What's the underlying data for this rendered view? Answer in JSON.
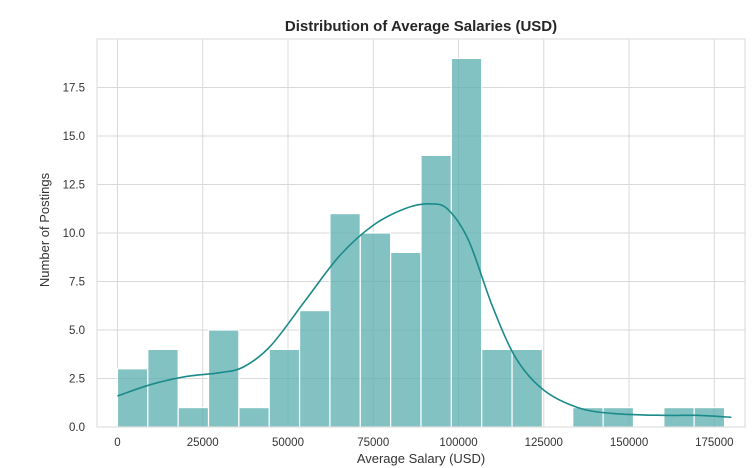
{
  "chart_data": {
    "type": "histogram",
    "title": "Distribution of Average Salaries (USD)",
    "xlabel": "Average Salary (USD)",
    "ylabel": "Number of Postings",
    "xlim": [
      -6000,
      184000
    ],
    "ylim": [
      0,
      20
    ],
    "grid": true,
    "legend": "none",
    "bar_color": "#5aadad",
    "bar_opacity": 0.75,
    "kde_color": "#1b8a8a",
    "bin_width": 8900,
    "bins": [
      {
        "start": 0,
        "end": 8900,
        "count": 3
      },
      {
        "start": 8900,
        "end": 17800,
        "count": 4
      },
      {
        "start": 17800,
        "end": 26700,
        "count": 1
      },
      {
        "start": 26700,
        "end": 35600,
        "count": 5
      },
      {
        "start": 35600,
        "end": 44500,
        "count": 1
      },
      {
        "start": 44500,
        "end": 53400,
        "count": 4
      },
      {
        "start": 53400,
        "end": 62300,
        "count": 6
      },
      {
        "start": 62300,
        "end": 71200,
        "count": 11
      },
      {
        "start": 71200,
        "end": 80100,
        "count": 10
      },
      {
        "start": 80100,
        "end": 89000,
        "count": 9
      },
      {
        "start": 89000,
        "end": 97900,
        "count": 14
      },
      {
        "start": 97900,
        "end": 106800,
        "count": 19
      },
      {
        "start": 106800,
        "end": 115700,
        "count": 4
      },
      {
        "start": 115700,
        "end": 124600,
        "count": 4
      },
      {
        "start": 124600,
        "end": 133500,
        "count": 0
      },
      {
        "start": 133500,
        "end": 142400,
        "count": 1
      },
      {
        "start": 142400,
        "end": 151300,
        "count": 1
      },
      {
        "start": 151300,
        "end": 160200,
        "count": 0
      },
      {
        "start": 160200,
        "end": 169100,
        "count": 1
      },
      {
        "start": 169100,
        "end": 178000,
        "count": 1
      }
    ],
    "kde": [
      [
        0,
        1.6
      ],
      [
        10000,
        2.2
      ],
      [
        20000,
        2.6
      ],
      [
        30000,
        2.8
      ],
      [
        37000,
        3.1
      ],
      [
        45000,
        4.2
      ],
      [
        55000,
        6.5
      ],
      [
        65000,
        8.8
      ],
      [
        75000,
        10.4
      ],
      [
        85000,
        11.3
      ],
      [
        92000,
        11.5
      ],
      [
        97000,
        11.2
      ],
      [
        103000,
        9.6
      ],
      [
        110000,
        6.2
      ],
      [
        117000,
        3.5
      ],
      [
        125000,
        1.9
      ],
      [
        135000,
        1.0
      ],
      [
        145000,
        0.7
      ],
      [
        160000,
        0.6
      ],
      [
        170000,
        0.6
      ],
      [
        180000,
        0.5
      ]
    ],
    "xticks": [
      {
        "value": 0,
        "label": "0"
      },
      {
        "value": 25000,
        "label": "25000"
      },
      {
        "value": 50000,
        "label": "50000"
      },
      {
        "value": 75000,
        "label": "75000"
      },
      {
        "value": 100000,
        "label": "100000"
      },
      {
        "value": 125000,
        "label": "125000"
      },
      {
        "value": 150000,
        "label": "150000"
      },
      {
        "value": 175000,
        "label": "175000"
      }
    ],
    "yticks": [
      {
        "value": 0,
        "label": "0.0"
      },
      {
        "value": 2.5,
        "label": "2.5"
      },
      {
        "value": 5,
        "label": "5.0"
      },
      {
        "value": 7.5,
        "label": "7.5"
      },
      {
        "value": 10,
        "label": "10.0"
      },
      {
        "value": 12.5,
        "label": "12.5"
      },
      {
        "value": 15,
        "label": "15.0"
      },
      {
        "value": 17.5,
        "label": "17.5"
      }
    ]
  }
}
